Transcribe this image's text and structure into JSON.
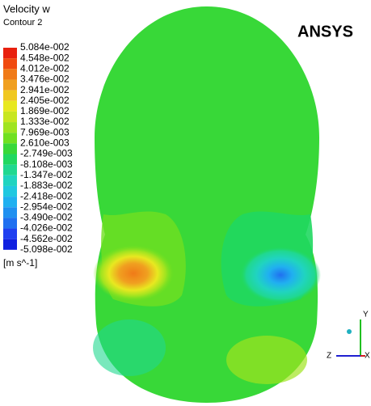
{
  "legend": {
    "title": "Velocity w",
    "subtitle": "Contour 2",
    "labels": [
      "5.084e-002",
      "4.548e-002",
      "4.012e-002",
      "3.476e-002",
      "2.941e-002",
      "2.405e-002",
      "1.869e-002",
      "1.333e-002",
      "7.969e-003",
      "2.610e-003",
      "-2.749e-003",
      "-8.108e-003",
      "-1.347e-002",
      "-1.883e-002",
      "-2.418e-002",
      "-2.954e-002",
      "-3.490e-002",
      "-4.026e-002",
      "-4.562e-002",
      "-5.098e-002"
    ],
    "colors": [
      "#e8200e",
      "#f04a10",
      "#f07a18",
      "#f0a020",
      "#f0c820",
      "#e8e820",
      "#c8e620",
      "#a0e420",
      "#70e020",
      "#38d838",
      "#20d860",
      "#20d890",
      "#20d4c0",
      "#20c8e0",
      "#20b0f0",
      "#2090f0",
      "#2070f0",
      "#2040f0",
      "#1020e0"
    ],
    "unit": "[m s^-1]"
  },
  "logo": "ANSYS",
  "axes": {
    "y": "Y",
    "z": "Z",
    "x": "X"
  }
}
